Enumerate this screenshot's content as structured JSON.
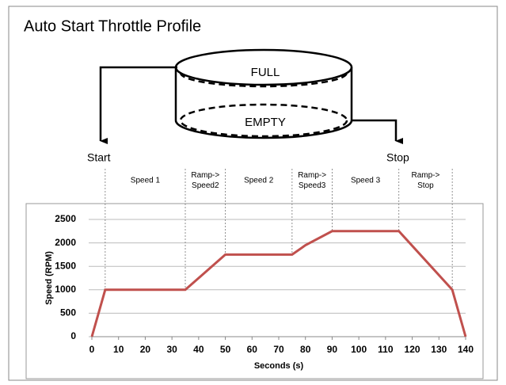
{
  "title": "Auto Start Throttle Profile",
  "diagram": {
    "tank_top": "FULL",
    "tank_bottom": "EMPTY",
    "start": "Start",
    "stop": "Stop"
  },
  "chart_data": {
    "type": "line",
    "x": [
      0,
      5,
      35,
      50,
      75,
      80,
      90,
      115,
      135,
      140
    ],
    "values": [
      0,
      1000,
      1000,
      1750,
      1750,
      1950,
      2250,
      2250,
      1000,
      0
    ],
    "color": "#c0504d",
    "xlim": [
      0,
      140
    ],
    "xticks": [
      0,
      10,
      20,
      30,
      40,
      50,
      60,
      70,
      80,
      90,
      100,
      110,
      120,
      130,
      140
    ],
    "ylim": [
      0,
      2500
    ],
    "yticks": [
      0,
      500,
      1000,
      1500,
      2000,
      2500
    ],
    "x_label": "Seconds (s)",
    "y_label": "Speed (RPM)",
    "grid": true,
    "phases": [
      {
        "label": [
          "Speed 1"
        ],
        "start": 5,
        "end": 35
      },
      {
        "label": [
          "Ramp->",
          "Speed2"
        ],
        "start": 35,
        "end": 50
      },
      {
        "label": [
          "Speed 2"
        ],
        "start": 50,
        "end": 75
      },
      {
        "label": [
          "Ramp->",
          "Speed3"
        ],
        "start": 75,
        "end": 90
      },
      {
        "label": [
          "Speed 3"
        ],
        "start": 90,
        "end": 115
      },
      {
        "label": [
          "Ramp->",
          "Stop"
        ],
        "start": 115,
        "end": 135
      }
    ]
  }
}
